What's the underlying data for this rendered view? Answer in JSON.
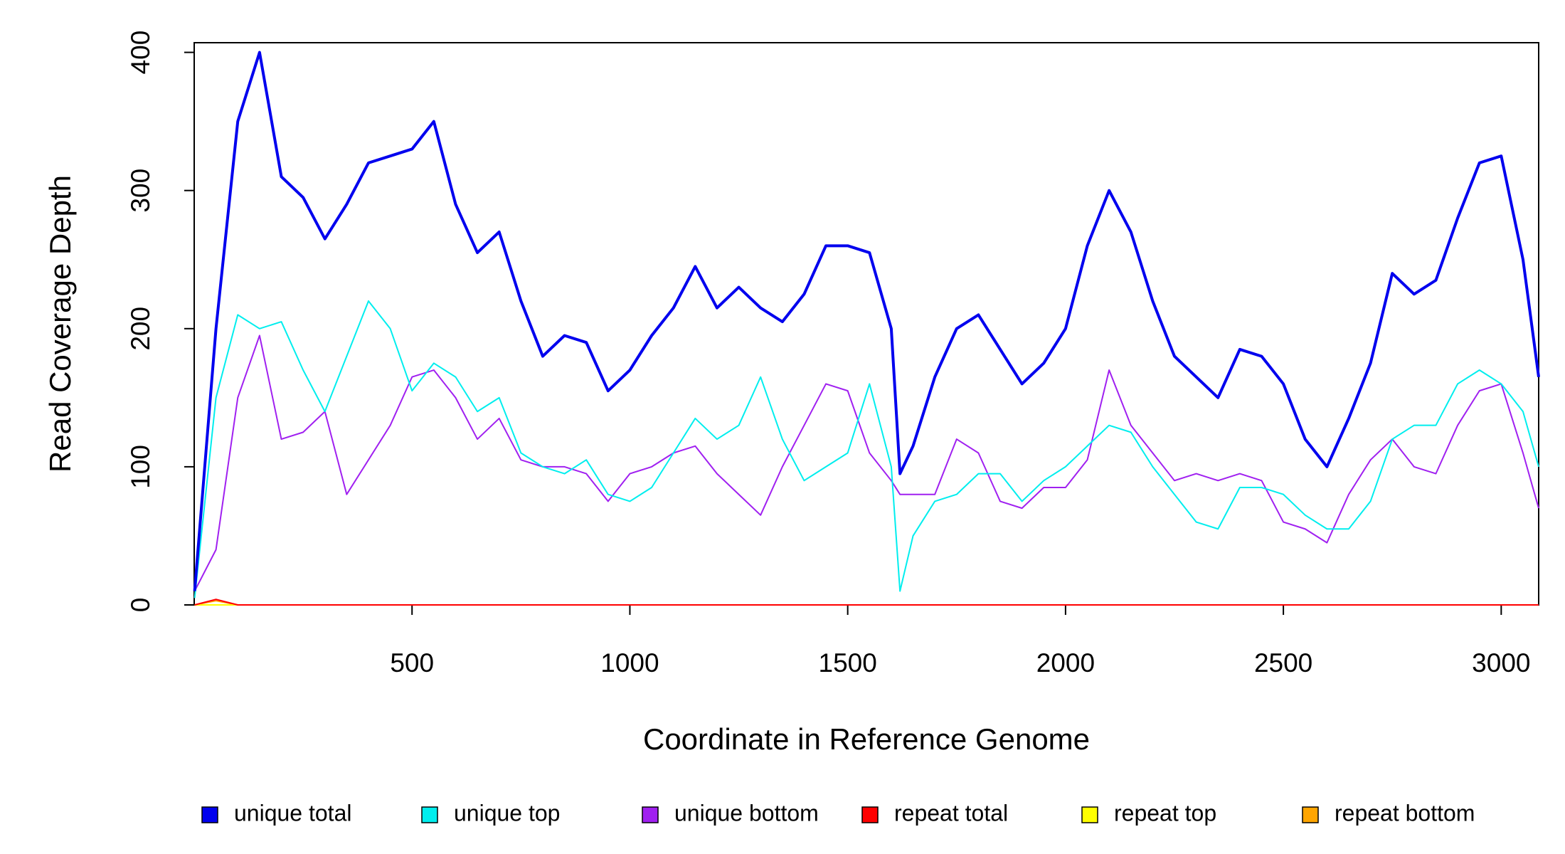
{
  "chart_data": {
    "type": "line",
    "xlabel": "Coordinate in Reference Genome",
    "ylabel": "Read Coverage Depth",
    "x": [
      1,
      50,
      100,
      150,
      200,
      250,
      300,
      350,
      400,
      450,
      500,
      550,
      600,
      650,
      700,
      750,
      800,
      850,
      900,
      950,
      1000,
      1050,
      1100,
      1150,
      1200,
      1250,
      1300,
      1350,
      1400,
      1450,
      1500,
      1550,
      1600,
      1620,
      1650,
      1700,
      1750,
      1800,
      1850,
      1900,
      1950,
      2000,
      2050,
      2100,
      2150,
      2200,
      2250,
      2300,
      2350,
      2400,
      2450,
      2500,
      2550,
      2600,
      2650,
      2700,
      2750,
      2800,
      2850,
      2900,
      2950,
      3000,
      3050,
      3086
    ],
    "series": [
      {
        "name": "unique total",
        "color": "#0000ee",
        "values": [
          10,
          200,
          350,
          400,
          310,
          295,
          265,
          290,
          320,
          325,
          330,
          350,
          290,
          255,
          270,
          220,
          180,
          195,
          190,
          155,
          170,
          195,
          215,
          245,
          215,
          230,
          215,
          205,
          225,
          260,
          260,
          255,
          200,
          95,
          115,
          165,
          200,
          210,
          185,
          160,
          175,
          200,
          260,
          300,
          270,
          220,
          180,
          165,
          150,
          185,
          180,
          160,
          120,
          100,
          135,
          175,
          240,
          225,
          235,
          280,
          320,
          325,
          250,
          165
        ]
      },
      {
        "name": "unique top",
        "color": "#00eeee",
        "values": [
          5,
          150,
          210,
          200,
          205,
          170,
          140,
          180,
          220,
          200,
          155,
          175,
          165,
          140,
          150,
          110,
          100,
          95,
          105,
          80,
          75,
          85,
          110,
          135,
          120,
          130,
          165,
          120,
          90,
          100,
          110,
          160,
          100,
          10,
          50,
          75,
          80,
          95,
          95,
          75,
          90,
          100,
          115,
          130,
          125,
          100,
          80,
          60,
          55,
          85,
          85,
          80,
          65,
          55,
          55,
          75,
          120,
          130,
          130,
          160,
          170,
          160,
          140,
          100
        ]
      },
      {
        "name": "unique bottom",
        "color": "#a020f0",
        "values": [
          10,
          40,
          150,
          195,
          120,
          125,
          140,
          80,
          105,
          130,
          165,
          170,
          150,
          120,
          135,
          105,
          100,
          100,
          95,
          75,
          95,
          100,
          110,
          115,
          95,
          80,
          65,
          100,
          130,
          160,
          155,
          110,
          90,
          80,
          80,
          80,
          120,
          110,
          75,
          70,
          85,
          85,
          105,
          170,
          130,
          110,
          90,
          95,
          90,
          95,
          90,
          60,
          55,
          45,
          80,
          105,
          120,
          100,
          95,
          130,
          155,
          160,
          110,
          70
        ]
      },
      {
        "name": "repeat total",
        "color": "#ff0000",
        "values": [
          0,
          4,
          0,
          0,
          0,
          0,
          0,
          0,
          0,
          0,
          0,
          0,
          0,
          0,
          0,
          0,
          0,
          0,
          0,
          0,
          0,
          0,
          0,
          0,
          0,
          0,
          0,
          0,
          0,
          0,
          0,
          0,
          0,
          0,
          0,
          0,
          0,
          0,
          0,
          0,
          0,
          0,
          0,
          0,
          0,
          0,
          0,
          0,
          0,
          0,
          0,
          0,
          0,
          0,
          0,
          0,
          0,
          0,
          0,
          0,
          0,
          0,
          0,
          0
        ]
      },
      {
        "name": "repeat top",
        "color": "#ffff00",
        "values": [
          0,
          0,
          0,
          0,
          0,
          0,
          0,
          0,
          0,
          0,
          0,
          0,
          0,
          0,
          0,
          0,
          0,
          0,
          0,
          0,
          0,
          0,
          0,
          0,
          0,
          0,
          0,
          0,
          0,
          0,
          0,
          0,
          0,
          0,
          0,
          0,
          0,
          0,
          0,
          0,
          0,
          0,
          0,
          0,
          0,
          0,
          0,
          0,
          0,
          0,
          0,
          0,
          0,
          0,
          0,
          0,
          0,
          0,
          0,
          0,
          0,
          0,
          0,
          0
        ]
      },
      {
        "name": "repeat bottom",
        "color": "#ffa500",
        "values": [
          0,
          3,
          0,
          0,
          0,
          0,
          0,
          0,
          0,
          0,
          0,
          0,
          0,
          0,
          0,
          0,
          0,
          0,
          0,
          0,
          0,
          0,
          0,
          0,
          0,
          0,
          0,
          0,
          0,
          0,
          0,
          0,
          0,
          0,
          0,
          0,
          0,
          0,
          0,
          0,
          0,
          0,
          0,
          0,
          0,
          0,
          0,
          0,
          0,
          0,
          0,
          0,
          0,
          0,
          0,
          0,
          0,
          0,
          0,
          0,
          0,
          0,
          0,
          0
        ]
      }
    ],
    "xlim": [
      0,
      3086
    ],
    "xticks": [
      500,
      1000,
      1500,
      2000,
      2500,
      3000
    ],
    "ylim": [
      0,
      407
    ],
    "yticks": [
      0,
      100,
      200,
      300,
      400
    ],
    "legend": "bottom",
    "grid": false
  }
}
